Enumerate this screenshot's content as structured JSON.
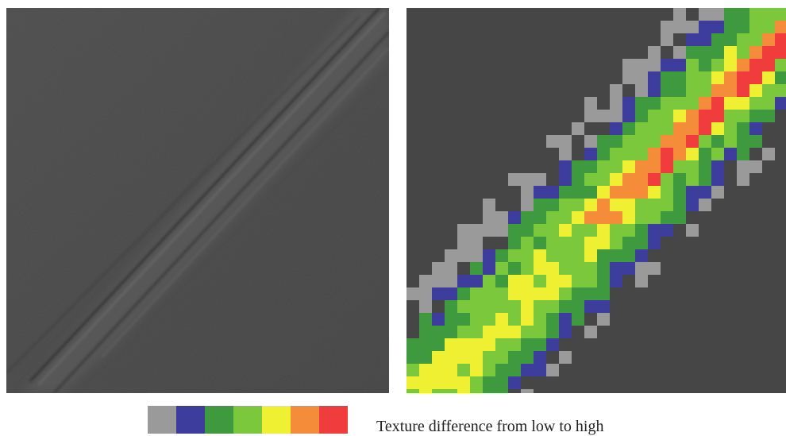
{
  "colors": {
    "background": "#4a4a4a",
    "levels": [
      "#9a9a9a",
      "#3d3d9e",
      "#3f9a3f",
      "#7cc83c",
      "#f0f032",
      "#f58c3a",
      "#f03c3c"
    ]
  },
  "legend": {
    "label": "Texture difference from low to high"
  }
}
